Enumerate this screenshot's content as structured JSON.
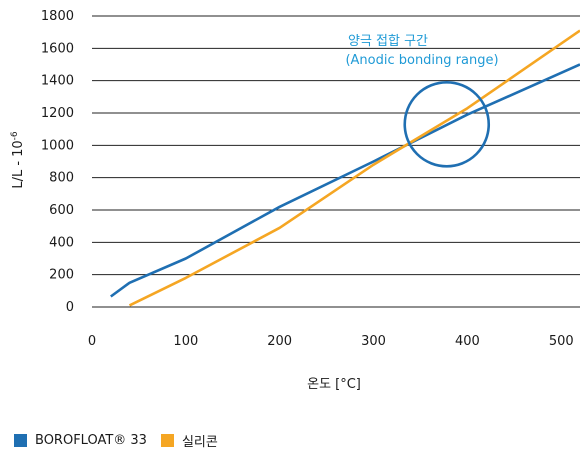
{
  "chart_data": {
    "type": "line",
    "title": "",
    "xlabel": "온도 [°C]",
    "ylabel_main": "L/L - 10",
    "ylabel_sup": "-6",
    "xlim": [
      0,
      520
    ],
    "ylim": [
      0,
      1800
    ],
    "xticks": [
      0,
      100,
      200,
      300,
      400,
      500
    ],
    "yticks": [
      0,
      200,
      400,
      600,
      800,
      1000,
      1200,
      1400,
      1600,
      1800
    ],
    "grid": "horizontal",
    "legend_position": "bottom-left",
    "series": [
      {
        "name": "BOROFLOAT® 33",
        "color": "#1f6fb2",
        "x": [
          20,
          40,
          100,
          200,
          300,
          400,
          520
        ],
        "y": [
          65,
          150,
          300,
          620,
          900,
          1190,
          1500
        ]
      },
      {
        "name": "실리콘",
        "color": "#f5a623",
        "x": [
          40,
          100,
          200,
          300,
          400,
          520
        ],
        "y": [
          10,
          180,
          490,
          880,
          1230,
          1710
        ]
      }
    ],
    "annotations": [
      {
        "line1": "양극 접합 구간",
        "line2": "(Anodic bonding range)",
        "color": "#1f9ad6",
        "circle_center": [
          378,
          1130
        ]
      }
    ]
  }
}
